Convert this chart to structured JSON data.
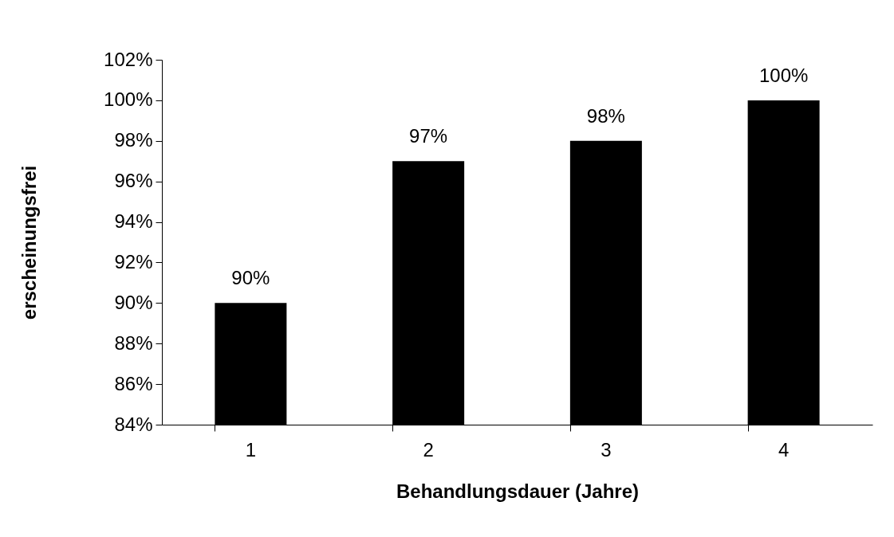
{
  "chart_data": {
    "type": "bar",
    "xlabel": "Behandlungsdauer (Jahre)",
    "ylabel": "erscheinungsfrei",
    "categories": [
      "1",
      "2",
      "3",
      "4"
    ],
    "values": [
      90,
      97,
      98,
      100
    ],
    "value_labels": [
      "90%",
      "97%",
      "98%",
      "100%"
    ],
    "color": "#000000",
    "ylim": [
      84,
      102
    ],
    "yticks": [
      {
        "value": 84,
        "label": "84%"
      },
      {
        "value": 86,
        "label": "86%"
      },
      {
        "value": 88,
        "label": "88%"
      },
      {
        "value": 90,
        "label": "90%"
      },
      {
        "value": 92,
        "label": "92%"
      },
      {
        "value": 94,
        "label": "94%"
      },
      {
        "value": 96,
        "label": "96%"
      },
      {
        "value": 98,
        "label": "98%"
      },
      {
        "value": 100,
        "label": "100%"
      },
      {
        "value": 102,
        "label": "102%"
      }
    ],
    "grid": false,
    "legend": false
  }
}
